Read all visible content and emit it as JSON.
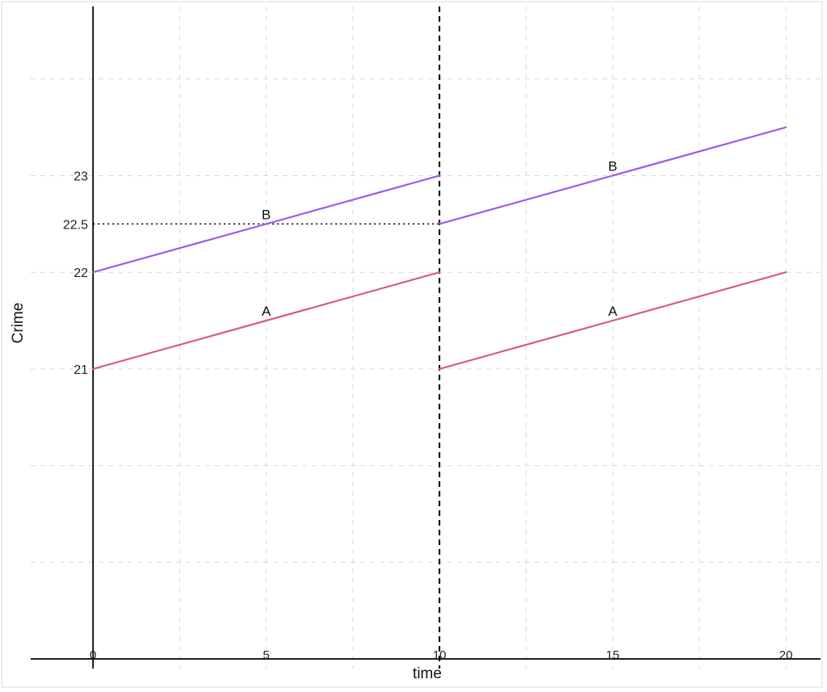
{
  "chart_data": {
    "type": "line",
    "xlabel": "time",
    "ylabel": "Crime",
    "xlim": [
      -1.8,
      21.0
    ],
    "ylim": [
      17.9,
      24.75
    ],
    "x_ticks": [
      0,
      5,
      10,
      15,
      20
    ],
    "x_tick_labels": [
      "0",
      "5",
      "10",
      "15",
      "20"
    ],
    "x_minor_grid": [
      2.5,
      7.5,
      12.5,
      17.5
    ],
    "y_ticks": [
      21,
      22,
      22.5,
      23
    ],
    "y_tick_labels": [
      "21",
      "22",
      "22.5",
      "23"
    ],
    "y_grid": [
      19,
      20,
      21,
      22,
      23,
      24
    ],
    "axis_lines": {
      "x_at_y": 18,
      "y_at_x": 0
    },
    "grid": true,
    "vline": {
      "x": 10,
      "style": "dashed"
    },
    "hline": {
      "y": 22.5,
      "x_from": 0,
      "x_to": 10,
      "style": "dotted"
    },
    "series": [
      {
        "name": "A",
        "color": "#d45c8a",
        "segments": [
          [
            [
              0,
              21
            ],
            [
              10,
              22
            ]
          ],
          [
            [
              10,
              21
            ],
            [
              20,
              22
            ]
          ]
        ]
      },
      {
        "name": "B",
        "color": "#a05be8",
        "segments": [
          [
            [
              0,
              22
            ],
            [
              10,
              23
            ]
          ],
          [
            [
              10,
              22.5
            ],
            [
              20,
              23.5
            ]
          ]
        ]
      }
    ],
    "labels": [
      {
        "text": "B",
        "x": 5,
        "y": 22.6
      },
      {
        "text": "B",
        "x": 15,
        "y": 23.1
      },
      {
        "text": "A",
        "x": 5,
        "y": 21.6
      },
      {
        "text": "A",
        "x": 15,
        "y": 21.6
      }
    ]
  }
}
